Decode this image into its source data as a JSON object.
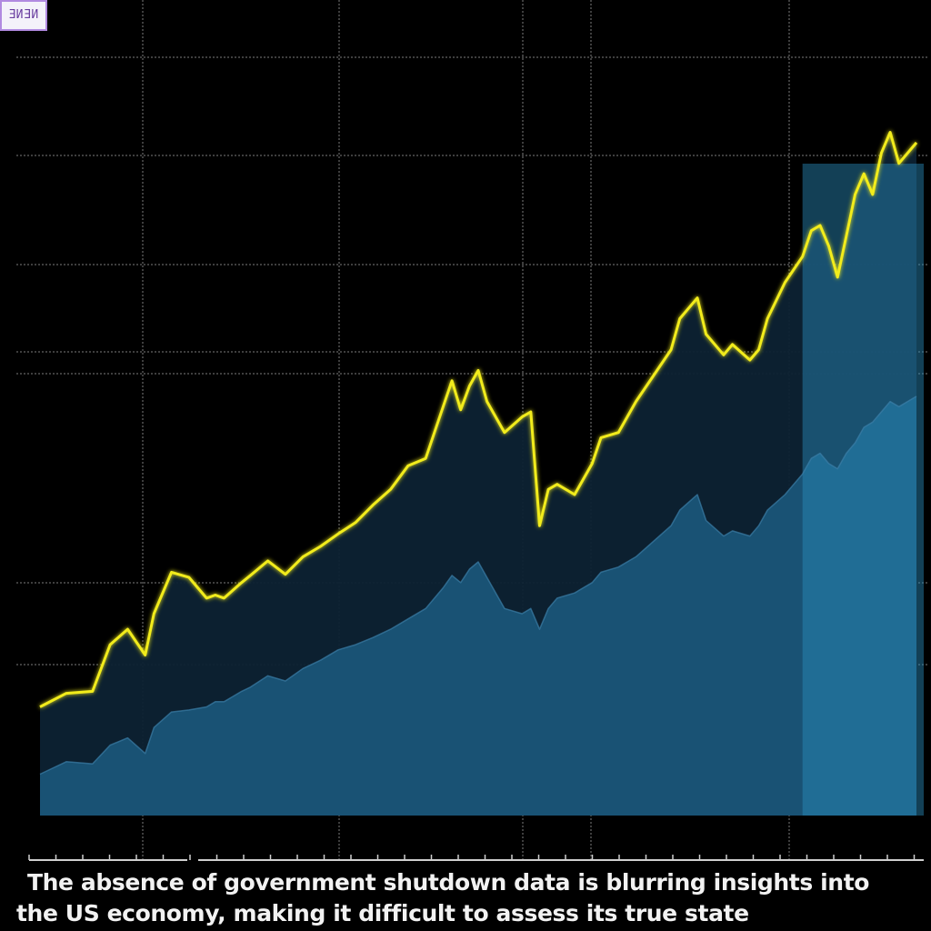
{
  "badge": {
    "text": "ƎИƎИ"
  },
  "caption": {
    "line1": "The absence of government shutdown data is blurring insights into",
    "line2": "the US economy, making it difficult to assess its true state"
  },
  "colors": {
    "background": "#000000",
    "line": "#f2ec1a",
    "area_dark": "#0d2233",
    "area_blue": "#1a5578",
    "highlight": "#2a8fbf",
    "grid": "#9a9a9a"
  },
  "chart_data": {
    "type": "area",
    "title": "",
    "xlabel": "",
    "ylabel": "",
    "grid": true,
    "highlight_region": [
      0.87,
      1.0
    ],
    "x": [
      0.0,
      0.03,
      0.06,
      0.08,
      0.1,
      0.12,
      0.13,
      0.15,
      0.17,
      0.19,
      0.2,
      0.21,
      0.23,
      0.24,
      0.26,
      0.28,
      0.3,
      0.32,
      0.34,
      0.36,
      0.38,
      0.4,
      0.42,
      0.44,
      0.46,
      0.47,
      0.48,
      0.49,
      0.5,
      0.51,
      0.53,
      0.55,
      0.56,
      0.57,
      0.58,
      0.59,
      0.61,
      0.63,
      0.64,
      0.66,
      0.68,
      0.7,
      0.72,
      0.73,
      0.75,
      0.76,
      0.78,
      0.79,
      0.81,
      0.82,
      0.83,
      0.85,
      0.87,
      0.88,
      0.89,
      0.9,
      0.91,
      0.92,
      0.93,
      0.94,
      0.95,
      0.96,
      0.97,
      0.98,
      1.0
    ],
    "series": [
      {
        "values": [
          10.5,
          11.8,
          12.0,
          16.5,
          18.0,
          15.5,
          19.5,
          23.5,
          23.0,
          21.0,
          21.3,
          21.0,
          22.5,
          23.2,
          24.6,
          23.3,
          25.0,
          26.0,
          27.2,
          28.3,
          30.0,
          31.5,
          33.8,
          34.5,
          39.5,
          42.0,
          39.2,
          41.5,
          43.0,
          40.0,
          37.0,
          38.5,
          39.0,
          28.0,
          31.5,
          32.0,
          31.0,
          34.0,
          36.5,
          37.0,
          40.0,
          42.5,
          45.0,
          48.0,
          50.0,
          46.5,
          44.5,
          45.5,
          44.0,
          45.0,
          48.0,
          51.5,
          54.0,
          56.5,
          57.0,
          55.0,
          52.0,
          56.0,
          60.0,
          62.0,
          60.0,
          64.0,
          66.0,
          63.0,
          65.0
        ]
      },
      {
        "values": [
          4.0,
          5.2,
          5.0,
          6.8,
          7.5,
          6.0,
          8.5,
          10.0,
          10.2,
          10.5,
          11.0,
          11.0,
          12.0,
          12.4,
          13.5,
          13.0,
          14.2,
          15.0,
          16.0,
          16.5,
          17.2,
          18.0,
          19.0,
          20.0,
          22.0,
          23.2,
          22.5,
          23.8,
          24.5,
          23.0,
          20.0,
          19.5,
          20.0,
          18.0,
          20.0,
          21.0,
          21.5,
          22.5,
          23.5,
          24.0,
          25.0,
          26.5,
          28.0,
          29.5,
          31.0,
          28.5,
          27.0,
          27.5,
          27.0,
          28.0,
          29.5,
          31.0,
          33.0,
          34.5,
          35.0,
          34.0,
          33.5,
          35.0,
          36.0,
          37.5,
          38.0,
          39.0,
          40.0,
          39.5,
          40.5
        ]
      }
    ]
  }
}
